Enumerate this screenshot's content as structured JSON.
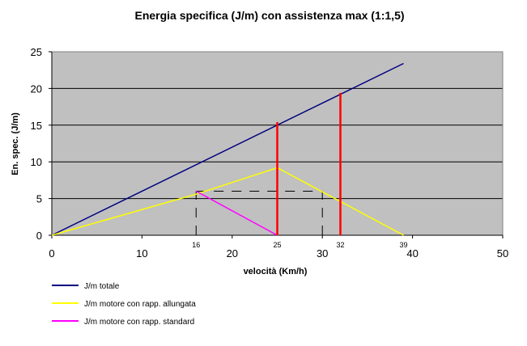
{
  "chart_data": {
    "type": "line",
    "title": "Energia specifica (J/m) con assistenza max (1:1,5)",
    "xlabel": "velocità (Km/h)",
    "ylabel": "En. spec. (J/m)",
    "xlim": [
      0,
      50
    ],
    "ylim": [
      0,
      25
    ],
    "x_ticks": [
      0,
      10,
      20,
      30,
      40,
      50
    ],
    "y_ticks": [
      0,
      5,
      10,
      15,
      20,
      25
    ],
    "grid": "horizontal",
    "legend_position": "bottom-left",
    "plot_background": "#c0c0c0",
    "series": [
      {
        "name": "J/m totale",
        "color": "#000080",
        "x": [
          0,
          39
        ],
        "y": [
          0,
          23.4
        ]
      },
      {
        "name": "J/m motore con rapp. allungata",
        "color": "#ffff00",
        "x": [
          0,
          16,
          25,
          39
        ],
        "y": [
          0,
          5.6,
          9.2,
          0
        ]
      },
      {
        "name": "J/m motore con rapp. standard",
        "color": "#ff00ff",
        "x": [
          16,
          25
        ],
        "y": [
          6.0,
          0
        ]
      }
    ],
    "annotations": {
      "vertical_markers": [
        {
          "x": 25,
          "y_top": 15.4,
          "color": "#ff0000"
        },
        {
          "x": 32,
          "y_top": 19.4,
          "color": "#ff0000"
        }
      ],
      "dashed_lines": [
        {
          "x": [
            16,
            16
          ],
          "y": [
            0,
            6
          ]
        },
        {
          "x": [
            25,
            25
          ],
          "y": [
            0,
            9.2
          ]
        },
        {
          "x": [
            30,
            30
          ],
          "y": [
            0,
            6
          ]
        },
        {
          "x": [
            32,
            32
          ],
          "y": [
            0,
            6
          ]
        },
        {
          "x": [
            16,
            30
          ],
          "y": [
            6,
            6
          ]
        }
      ],
      "x_value_labels": [
        {
          "x": 16,
          "text": "16"
        },
        {
          "x": 25,
          "text": "25"
        },
        {
          "x": 32,
          "text": "32"
        },
        {
          "x": 39,
          "text": "39"
        }
      ]
    }
  }
}
